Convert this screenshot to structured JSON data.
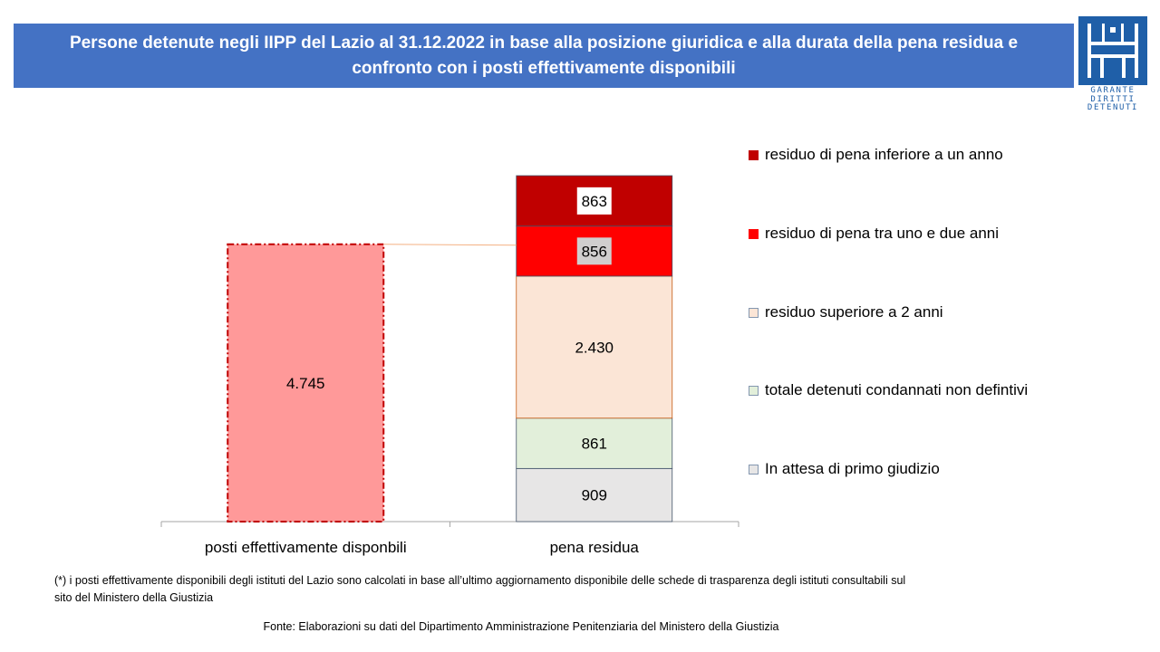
{
  "title": "Persone detenute negli IIPP del Lazio al 31.12.2022  in base alla posizione giuridica e alla durata della pena residua e confronto con i posti effettivamente disponibili",
  "logo": {
    "icon": "garante-diritti-detenuti-logo",
    "lines": [
      "GARANTE",
      "DIRITTI",
      "DETENUTI"
    ],
    "color": "#1f5fa8"
  },
  "chart_data": {
    "type": "bar",
    "stacked": true,
    "categories": [
      "posti effettivamente disponbili",
      "pena residua"
    ],
    "series": [
      {
        "name": "In attesa di primo giudizio",
        "values": [
          null,
          909
        ],
        "labels": [
          null,
          "909"
        ],
        "color": "#e7e6e6"
      },
      {
        "name": "totale detenuti condannati non defintivi",
        "values": [
          null,
          861
        ],
        "labels": [
          null,
          "861"
        ],
        "color": "#e2efda"
      },
      {
        "name": "residuo superiore a 2 anni",
        "values": [
          null,
          2430
        ],
        "labels": [
          null,
          "2.430"
        ],
        "color": "#fbe5d6"
      },
      {
        "name": "residuo di pena tra uno e due anni",
        "values": [
          null,
          856
        ],
        "labels": [
          null,
          "856"
        ],
        "color": "#ff0000"
      },
      {
        "name": "residuo di pena inferiore a un anno",
        "values": [
          null,
          863
        ],
        "labels": [
          null,
          "863"
        ],
        "color": "#c00000"
      },
      {
        "name": "posti effettivamente disponibili",
        "values": [
          4745,
          null
        ],
        "labels": [
          "4.745",
          null
        ],
        "color": "#ff9999"
      }
    ],
    "legend_order": [
      "residuo di pena inferiore a un anno",
      "residuo di pena tra uno e due anni",
      "residuo superiore a 2 anni",
      "totale detenuti condannati non defintivi",
      "In attesa di primo giudizio"
    ],
    "legend": [
      {
        "name": "residuo di pena inferiore a un anno",
        "color": "#c00000"
      },
      {
        "name": "residuo di pena tra uno e due anni",
        "color": "#ff0000"
      },
      {
        "name": "residuo superiore a 2 anni",
        "color": "#fbe5d6"
      },
      {
        "name": "totale detenuti condannati non defintivi",
        "color": "#e2efda"
      },
      {
        "name": "In attesa di primo giudizio",
        "color": "#e7e6e6"
      }
    ],
    "legend_position": "right",
    "ylim": [
      0,
      5919
    ],
    "grid": false
  },
  "footnote": "(*) i posti effettivamente disponibili degli istituti del Lazio sono calcolati in base all’ultimo aggiornamento disponibile delle schede di trasparenza degli istituti consultabili sul sito del Ministero della Giustizia",
  "source": "Fonte:  Elaborazioni su dati del Dipartimento  Amministrazione Penitenziaria del Ministero della Giustizia"
}
